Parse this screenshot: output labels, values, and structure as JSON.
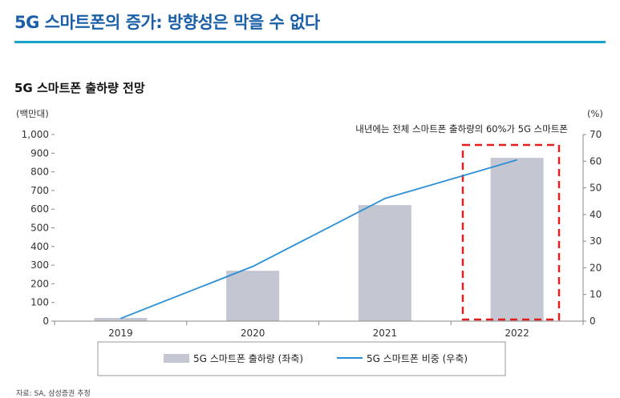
{
  "header": {
    "title": "5G 스마트폰의 증가: 방향성은 막을 수 없다"
  },
  "source": "자료: SA, 삼성증권 추정",
  "chart_data": {
    "type": "bar+line",
    "title": "5G 스마트폰 출하량 전망",
    "left_unit": "(백만대)",
    "right_unit": "(%)",
    "categories": [
      "2019",
      "2020",
      "2021",
      "2022"
    ],
    "left_ylim": [
      0,
      1000
    ],
    "left_ticks": [
      "0",
      "100",
      "200",
      "300",
      "400",
      "500",
      "600",
      "700",
      "800",
      "900",
      "1,000"
    ],
    "right_ylim": [
      0,
      70
    ],
    "right_ticks": [
      "0",
      "10",
      "20",
      "30",
      "40",
      "50",
      "60",
      "70"
    ],
    "series": [
      {
        "name": "5G 스마트폰 출하량 (좌축)",
        "type": "bar",
        "axis": "left",
        "color": "#c4c6d2",
        "values": [
          17,
          270,
          622,
          875
        ]
      },
      {
        "name": "5G 스마트폰 비중 (우축)",
        "type": "line",
        "axis": "right",
        "color": "#2b8fd6",
        "values": [
          1,
          20.5,
          46,
          60.5
        ]
      }
    ],
    "annotation": "내년에는 전체 스마트폰 출하량의 60%가 5G 스마트폰",
    "highlight": {
      "category": "2022",
      "color": "#e02020",
      "style": "dashed"
    },
    "grid": false,
    "legend_position": "bottom"
  }
}
